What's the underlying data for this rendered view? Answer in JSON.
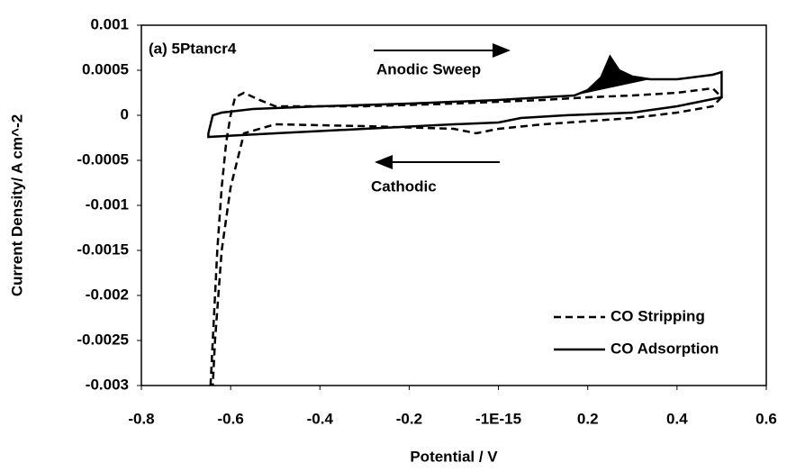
{
  "chart_data": {
    "type": "line",
    "x_label": "Potential / V",
    "y_label": "Current Density/ A cm^-2",
    "annotations": [
      "(a) 5Ptancr4",
      "Anodic Sweep",
      "Cathodic"
    ],
    "xlim": [
      -0.8,
      0.6
    ],
    "xticks": [
      -0.8,
      -0.6,
      -0.4,
      -0.2,
      {
        "value": -1e-15,
        "label": "-1E-15"
      },
      0.2,
      0.4,
      0.6
    ],
    "ylim": [
      -0.003,
      0.001
    ],
    "yticks": [
      0.001,
      0.0005,
      0,
      -0.0005,
      -0.001,
      -0.0015,
      -0.002,
      -0.0025,
      -0.003
    ],
    "legend": "lower right",
    "series": [
      {
        "name": "CO Stripping",
        "color": "#000000",
        "dash": true,
        "x": [
          -0.645,
          -0.64,
          -0.63,
          -0.62,
          -0.61,
          -0.6,
          -0.59,
          -0.57,
          -0.54,
          -0.5,
          -0.3,
          -0.1,
          0.1,
          0.2,
          0.3,
          0.4,
          0.48,
          0.5,
          0.48,
          0.4,
          0.3,
          0.1,
          0,
          -0.05,
          -0.1,
          -0.3,
          -0.5,
          -0.57,
          -0.6,
          -0.62,
          -0.635,
          -0.64
        ],
        "values": [
          -0.003,
          -0.0025,
          -0.0015,
          -0.0008,
          -0.0003,
          0,
          0.0002,
          0.00025,
          0.00018,
          0.0001,
          0.0001,
          0.00013,
          0.00017,
          0.0002,
          0.00022,
          0.00025,
          0.0003,
          0.0002,
          0.0001,
          3e-05,
          -3e-05,
          -0.0001,
          -0.00015,
          -0.0002,
          -0.00015,
          -0.00012,
          -0.0001,
          -0.0002,
          -0.0008,
          -0.0015,
          -0.0025,
          -0.003
        ]
      },
      {
        "name": "CO Adsorption",
        "color": "#000000",
        "dash": false,
        "x": [
          -0.65,
          -0.64,
          -0.62,
          -0.55,
          -0.4,
          -0.2,
          0,
          0.1,
          0.17,
          0.2,
          0.23,
          0.25,
          0.27,
          0.3,
          0.34,
          0.4,
          0.48,
          0.5,
          0.5,
          0.45,
          0.4,
          0.3,
          0.15,
          0.05,
          0,
          -0.1,
          -0.3,
          -0.5,
          -0.65,
          -0.65
        ],
        "values": [
          -0.0002,
          0,
          3e-05,
          7e-05,
          0.0001,
          0.00013,
          0.00017,
          0.0002,
          0.00022,
          0.00028,
          0.00042,
          0.00065,
          0.0005,
          0.00043,
          0.0004,
          0.0004,
          0.00045,
          0.00048,
          0.0002,
          0.00015,
          0.0001,
          3e-05,
          0,
          -3e-05,
          -8e-05,
          -0.0001,
          -0.00015,
          -0.0002,
          -0.00024,
          -0.0002
        ]
      }
    ]
  }
}
